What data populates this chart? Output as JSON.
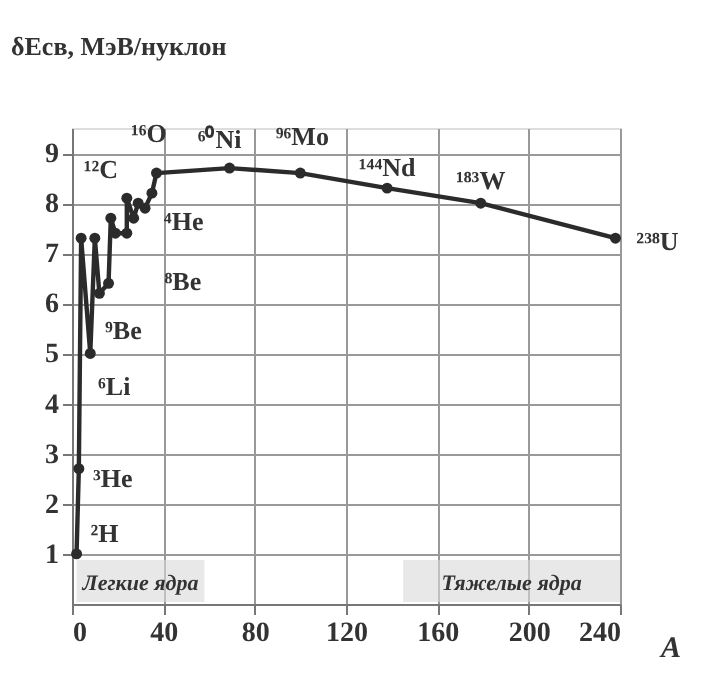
{
  "chart_data": {
    "type": "line",
    "ylabel": "δEсв, МэВ/нуклон",
    "xlabel": "A",
    "x": [
      2,
      3,
      4,
      8,
      10,
      12,
      16,
      17,
      19,
      24,
      24,
      27,
      29,
      32,
      35,
      37,
      69,
      100,
      138,
      179,
      238
    ],
    "series": [
      {
        "color": "#2b2b2b",
        "values": [
          1.0,
          2.7,
          7.3,
          5.0,
          7.3,
          6.2,
          6.4,
          7.7,
          7.4,
          7.4,
          8.1,
          7.7,
          8.0,
          7.9,
          8.2,
          8.6,
          8.7,
          8.6,
          8.3,
          8.0,
          7.3
        ]
      }
    ],
    "marker": "circle",
    "grid": true,
    "xlim": [
      0,
      240
    ],
    "xticks": [
      0,
      40,
      80,
      120,
      160,
      200,
      240
    ],
    "ylim": [
      0,
      9.5
    ],
    "yticks": [
      1,
      2,
      3,
      4,
      5,
      6,
      7,
      8,
      9
    ],
    "annotations": [
      {
        "text": "²H",
        "x": 2,
        "y": 1.0
      },
      {
        "text": "³He",
        "x": 3,
        "y": 2.7
      },
      {
        "text": "⁶Li",
        "x": 8,
        "y": 5.0
      },
      {
        "text": "⁹Be",
        "x": 12,
        "y": 6.2
      },
      {
        "text": "⁸Be",
        "x": 10,
        "y": 7.3
      },
      {
        "text": "⁴He",
        "x": 27,
        "y": 7.7
      },
      {
        "text": "¹²C",
        "x": 17,
        "y": 7.7
      },
      {
        "text": "¹⁶O",
        "x": 24,
        "y": 8.1
      },
      {
        "text": "⁶⁰Ni",
        "x": 69,
        "y": 8.7
      },
      {
        "text": "⁹⁶Mo",
        "x": 100,
        "y": 8.6
      },
      {
        "text": "¹⁴⁴Nd",
        "x": 138,
        "y": 8.3
      },
      {
        "text": "¹⁸³W",
        "x": 179,
        "y": 8.0
      },
      {
        "text": "²³⁸U",
        "x": 238,
        "y": 7.3
      }
    ],
    "bands": [
      {
        "axis": "x",
        "from": 2,
        "to": 58,
        "label": "Легкие ядра"
      },
      {
        "axis": "x",
        "from": 145,
        "to": 240,
        "label": "Тяжелые ядра"
      }
    ]
  }
}
